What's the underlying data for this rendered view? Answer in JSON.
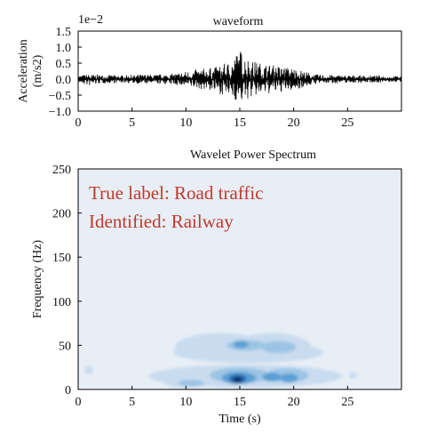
{
  "chart_data": [
    {
      "type": "line",
      "title": "waveform",
      "xlabel": "",
      "ylabel": "Acceleration\n(m/s2)",
      "y_scale_label": "1e−2",
      "xlim": [
        0,
        30
      ],
      "ylim": [
        -1.0,
        1.5
      ],
      "x_ticks": [
        "0",
        "5",
        "10",
        "15",
        "20",
        "25"
      ],
      "y_ticks": [
        "1.5",
        "1.0",
        "0.5",
        "0.0",
        "−0.5",
        "−1.0"
      ],
      "grid": false,
      "line_color": "#000000",
      "envelope": {
        "description_units": "1e-2 m/s2",
        "t": [
          0,
          1,
          2,
          3,
          4,
          5,
          6,
          7,
          8,
          9,
          10,
          11,
          12,
          13,
          14,
          15,
          16,
          17,
          18,
          19,
          20,
          21,
          22,
          23,
          24,
          25,
          26,
          27,
          28,
          29,
          30
        ],
        "upper": [
          0.12,
          0.15,
          0.14,
          0.13,
          0.12,
          0.13,
          0.15,
          0.14,
          0.16,
          0.18,
          0.25,
          0.3,
          0.35,
          0.4,
          0.55,
          0.95,
          0.6,
          0.5,
          0.45,
          0.4,
          0.35,
          0.25,
          0.15,
          0.14,
          0.13,
          0.12,
          0.12,
          0.11,
          0.11,
          0.1,
          0.1
        ],
        "lower": [
          -0.12,
          -0.22,
          -0.14,
          -0.13,
          -0.12,
          -0.13,
          -0.15,
          -0.14,
          -0.16,
          -0.18,
          -0.25,
          -0.3,
          -0.35,
          -0.45,
          -0.55,
          -0.75,
          -0.6,
          -0.5,
          -0.45,
          -0.4,
          -0.35,
          -0.25,
          -0.15,
          -0.14,
          -0.13,
          -0.12,
          -0.12,
          -0.11,
          -0.11,
          -0.1,
          -0.1
        ]
      }
    },
    {
      "type": "heatmap",
      "title": "Wavelet Power Spectrum",
      "xlabel": "Time (s)",
      "ylabel": "Frequency (Hz)",
      "xlim": [
        0,
        30
      ],
      "ylim": [
        0,
        250
      ],
      "x_ticks": [
        "0",
        "5",
        "10",
        "15",
        "20",
        "25"
      ],
      "y_ticks": [
        "250",
        "200",
        "150",
        "100",
        "50",
        "0"
      ],
      "grid": false,
      "background_color": "#e8eef6",
      "colors": [
        "#c9dcef",
        "#9cc4e4",
        "#5a9fd4",
        "#2166ac",
        "#08306b"
      ],
      "annotations": [
        "True label: Road traffic",
        "Identified:  Railway"
      ],
      "annotation_color": "#c0392b",
      "blobs": [
        {
          "t": 13.2,
          "f": 48,
          "rt": 4.2,
          "rf": 16,
          "level": 0
        },
        {
          "t": 18.0,
          "f": 48,
          "rt": 3.6,
          "rf": 16,
          "level": 0
        },
        {
          "t": 15.8,
          "f": 42,
          "rt": 7.0,
          "rf": 12,
          "level": 0
        },
        {
          "t": 15.5,
          "f": 15,
          "rt": 9.0,
          "rf": 13,
          "level": 0
        },
        {
          "t": 9.5,
          "f": 12,
          "rt": 1.8,
          "rf": 10,
          "level": 0
        },
        {
          "t": 21.0,
          "f": 18,
          "rt": 1.2,
          "rf": 8,
          "level": 0
        },
        {
          "t": 1.0,
          "f": 22,
          "rt": 0.4,
          "rf": 5,
          "level": 0
        },
        {
          "t": 25.5,
          "f": 16,
          "rt": 0.4,
          "rf": 4,
          "level": 0
        },
        {
          "t": 15.6,
          "f": 50,
          "rt": 1.8,
          "rf": 6,
          "level": 1
        },
        {
          "t": 18.6,
          "f": 48,
          "rt": 1.6,
          "rf": 7,
          "level": 1
        },
        {
          "t": 15.0,
          "f": 16,
          "rt": 2.8,
          "rf": 9,
          "level": 1
        },
        {
          "t": 19.4,
          "f": 16,
          "rt": 2.0,
          "rf": 8,
          "level": 1
        },
        {
          "t": 10.5,
          "f": 7,
          "rt": 1.2,
          "rf": 4,
          "level": 1
        },
        {
          "t": 14.9,
          "f": 13,
          "rt": 1.6,
          "rf": 7,
          "level": 2
        },
        {
          "t": 18.0,
          "f": 14,
          "rt": 0.9,
          "rf": 5,
          "level": 2
        },
        {
          "t": 19.6,
          "f": 13,
          "rt": 0.8,
          "rf": 5,
          "level": 2
        },
        {
          "t": 15.1,
          "f": 51,
          "rt": 0.7,
          "rf": 4,
          "level": 2
        },
        {
          "t": 14.8,
          "f": 12,
          "rt": 0.8,
          "rf": 5,
          "level": 3
        },
        {
          "t": 14.8,
          "f": 11,
          "rt": 0.4,
          "rf": 3,
          "level": 4
        }
      ]
    }
  ]
}
